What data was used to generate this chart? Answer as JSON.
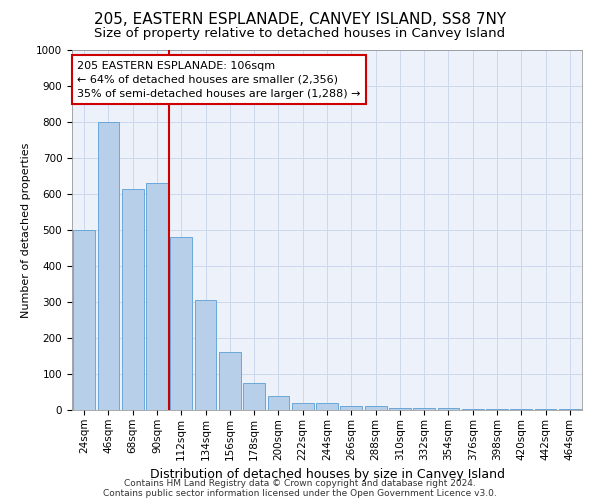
{
  "title": "205, EASTERN ESPLANADE, CANVEY ISLAND, SS8 7NY",
  "subtitle": "Size of property relative to detached houses in Canvey Island",
  "xlabel": "Distribution of detached houses by size in Canvey Island",
  "ylabel": "Number of detached properties",
  "categories": [
    "24sqm",
    "46sqm",
    "68sqm",
    "90sqm",
    "112sqm",
    "134sqm",
    "156sqm",
    "178sqm",
    "200sqm",
    "222sqm",
    "244sqm",
    "266sqm",
    "288sqm",
    "310sqm",
    "332sqm",
    "354sqm",
    "376sqm",
    "398sqm",
    "420sqm",
    "442sqm",
    "464sqm"
  ],
  "values": [
    500,
    800,
    615,
    630,
    480,
    305,
    160,
    75,
    40,
    20,
    20,
    10,
    10,
    5,
    5,
    5,
    3,
    3,
    3,
    3,
    2
  ],
  "bar_color": "#b8cfea",
  "bar_edge_color": "#5a9fd4",
  "vline_bar_index": 4,
  "vline_color": "#cc0000",
  "annotation_text": "205 EASTERN ESPLANADE: 106sqm\n← 64% of detached houses are smaller (2,356)\n35% of semi-detached houses are larger (1,288) →",
  "annotation_box_color": "#cc0000",
  "ylim": [
    0,
    1000
  ],
  "yticks": [
    0,
    100,
    200,
    300,
    400,
    500,
    600,
    700,
    800,
    900,
    1000
  ],
  "grid_color": "#cdd8ec",
  "background_color": "#edf1f9",
  "footer_line1": "Contains HM Land Registry data © Crown copyright and database right 2024.",
  "footer_line2": "Contains public sector information licensed under the Open Government Licence v3.0.",
  "title_fontsize": 11,
  "subtitle_fontsize": 9.5,
  "xlabel_fontsize": 9,
  "ylabel_fontsize": 8,
  "tick_fontsize": 7.5,
  "annotation_fontsize": 8,
  "footer_fontsize": 6.5
}
